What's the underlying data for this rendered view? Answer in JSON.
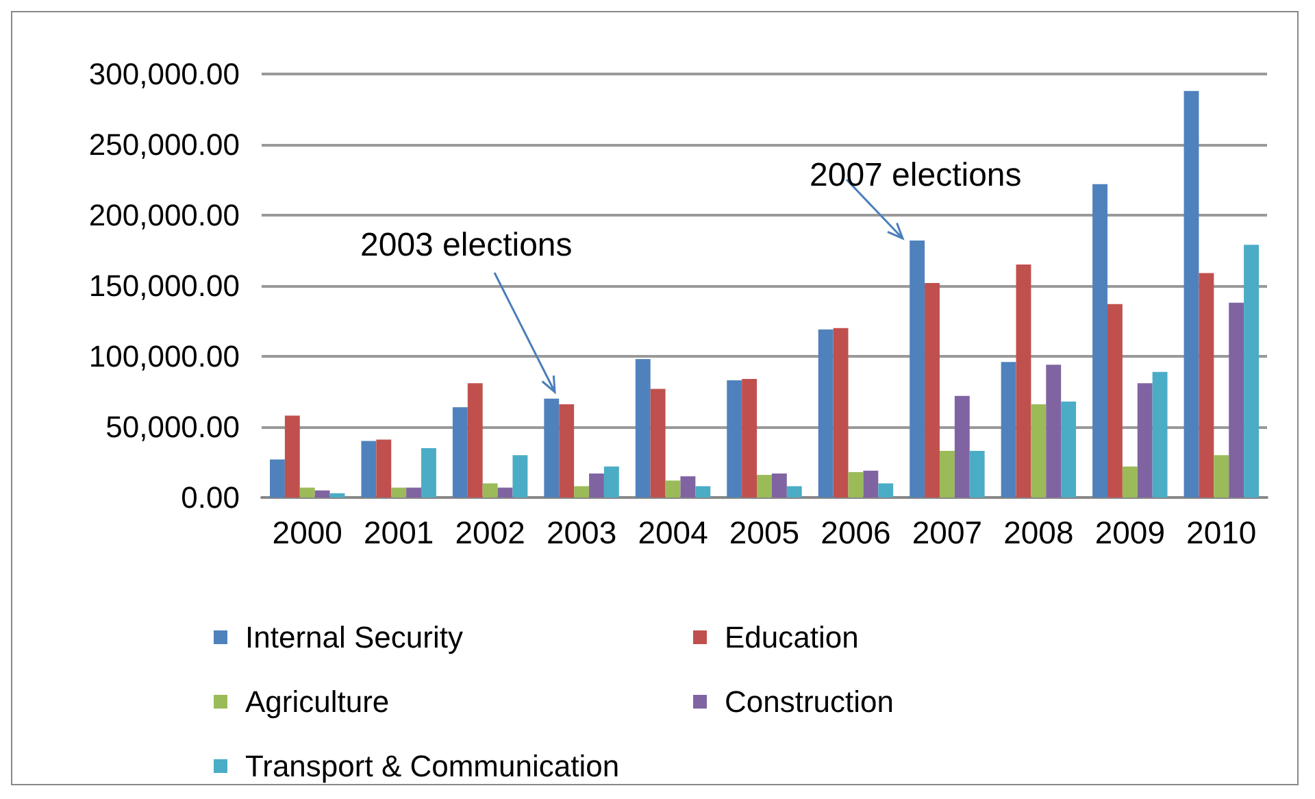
{
  "chart_data": {
    "type": "bar",
    "categories": [
      "2000",
      "2001",
      "2002",
      "2003",
      "2004",
      "2005",
      "2006",
      "2007",
      "2008",
      "2009",
      "2010"
    ],
    "series": [
      {
        "name": "Internal Security",
        "color": "#4f81bd",
        "values": [
          27000,
          40000,
          64000,
          70000,
          98000,
          83000,
          119000,
          182000,
          96000,
          222000,
          288000
        ]
      },
      {
        "name": "Education",
        "color": "#c0504d",
        "values": [
          58000,
          41000,
          81000,
          66000,
          77000,
          84000,
          120000,
          152000,
          165000,
          137000,
          159000
        ]
      },
      {
        "name": "Agriculture",
        "color": "#9bbb59",
        "values": [
          7000,
          7000,
          10000,
          8000,
          12000,
          16000,
          18000,
          33000,
          66000,
          22000,
          30000
        ]
      },
      {
        "name": "Construction",
        "color": "#8064a2",
        "values": [
          5000,
          7000,
          7000,
          17000,
          15000,
          17000,
          19000,
          72000,
          94000,
          81000,
          138000
        ]
      },
      {
        "name": "Transport & Communication",
        "color": "#4bacc6",
        "values": [
          3000,
          35000,
          30000,
          22000,
          8000,
          8000,
          10000,
          33000,
          68000,
          89000,
          179000
        ]
      }
    ],
    "ylim": [
      0,
      300000
    ],
    "yticks": [
      {
        "value": 0,
        "label": "0.00"
      },
      {
        "value": 50000,
        "label": "50,000.00"
      },
      {
        "value": 100000,
        "label": "100,000.00"
      },
      {
        "value": 150000,
        "label": "150,000.00"
      },
      {
        "value": 200000,
        "label": "200,000.00"
      },
      {
        "value": 250000,
        "label": "250,000.00"
      },
      {
        "value": 300000,
        "label": "300,000.00"
      }
    ],
    "grid": "y",
    "legend": "bottom",
    "annotations": [
      "2003 elections",
      "2007 elections"
    ]
  }
}
